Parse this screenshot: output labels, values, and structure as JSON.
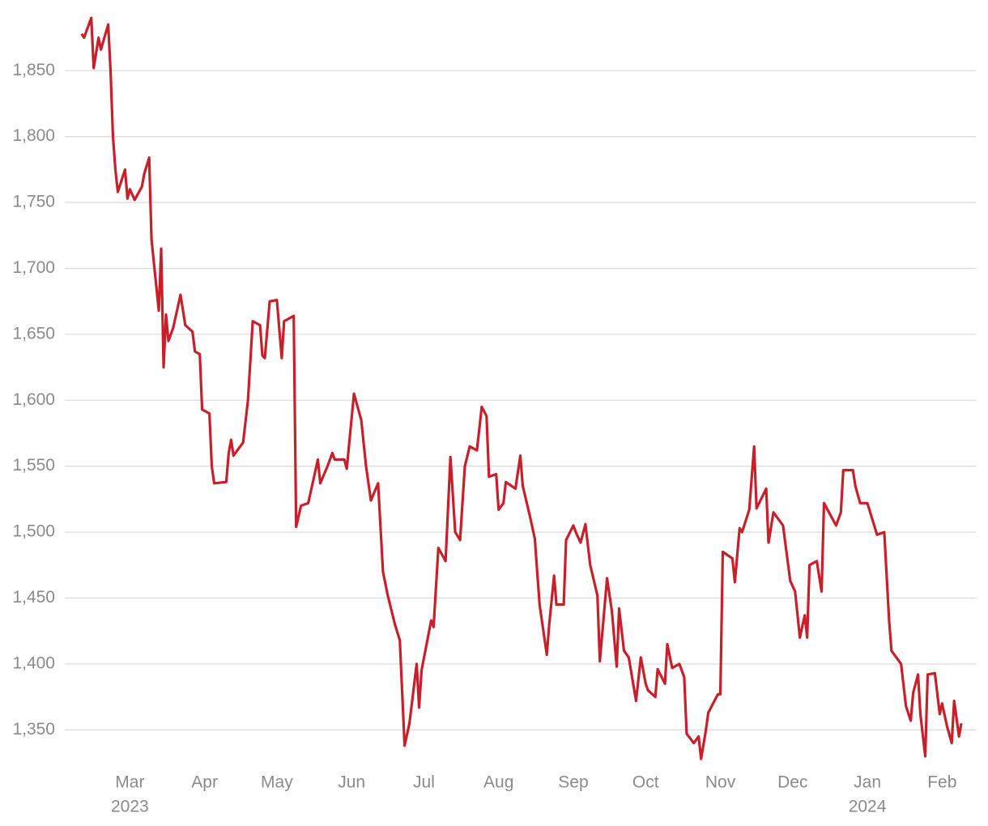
{
  "chart_data": {
    "type": "line",
    "x": [
      39,
      40,
      43,
      44,
      46,
      47,
      50,
      51,
      52,
      53,
      54,
      57,
      58,
      59,
      61,
      64,
      65,
      67,
      68,
      71,
      72,
      73,
      74,
      75,
      77,
      80,
      82,
      85,
      86,
      88,
      89,
      92,
      93,
      94,
      99,
      100,
      101,
      102,
      106,
      108,
      110,
      113,
      114,
      115,
      117,
      120,
      122,
      123,
      127,
      128,
      130,
      133,
      137,
      138,
      141,
      143,
      144,
      148,
      149,
      152,
      155,
      157,
      159,
      162,
      164,
      166,
      169,
      171,
      173,
      175,
      178,
      179,
      180,
      184,
      185,
      187,
      190,
      192,
      194,
      196,
      198,
      200,
      203,
      205,
      207,
      208,
      211,
      212,
      214,
      215,
      219,
      221,
      222,
      225,
      227,
      229,
      232,
      233,
      235,
      236,
      239,
      240,
      243,
      244,
      246,
      248,
      250,
      253,
      254,
      257,
      259,
      261,
      262,
      264,
      266,
      269,
      271,
      273,
      274,
      277,
      278,
      281,
      282,
      284,
      287,
      289,
      290,
      293,
      295,
      296,
      298,
      299,
      303,
      304,
      305,
      309,
      310,
      312,
      313,
      316,
      318,
      319,
      323,
      324,
      326,
      328,
      330,
      333,
      335,
      337,
      339,
      340,
      341,
      344,
      346,
      347,
      352,
      354,
      355,
      359,
      360,
      362,
      365,
      367,
      369,
      372,
      374,
      375,
      379,
      381,
      383,
      384,
      386,
      387,
      389,
      390,
      393,
      395,
      396,
      398,
      400,
      401,
      403,
      404
    ],
    "series": [
      {
        "color": "#c8202a",
        "values": [
          1878,
          1875,
          1890,
          1852,
          1875,
          1866,
          1885,
          1850,
          1800,
          1775,
          1758,
          1775,
          1753,
          1760,
          1752,
          1762,
          1772,
          1784,
          1722,
          1668,
          1715,
          1625,
          1665,
          1645,
          1655,
          1680,
          1657,
          1652,
          1637,
          1635,
          1593,
          1590,
          1550,
          1537,
          1538,
          1560,
          1570,
          1558,
          1568,
          1600,
          1660,
          1657,
          1634,
          1632,
          1675,
          1676,
          1632,
          1660,
          1664,
          1504,
          1520,
          1522,
          1555,
          1537,
          1550,
          1560,
          1555,
          1555,
          1548,
          1605,
          1585,
          1550,
          1524,
          1537,
          1470,
          1452,
          1430,
          1418,
          1338,
          1355,
          1400,
          1367,
          1395,
          1433,
          1428,
          1488,
          1478,
          1557,
          1500,
          1494,
          1550,
          1565,
          1562,
          1595,
          1588,
          1542,
          1544,
          1517,
          1522,
          1538,
          1533,
          1558,
          1535,
          1512,
          1495,
          1445,
          1407,
          1430,
          1467,
          1445,
          1445,
          1494,
          1505,
          1500,
          1492,
          1506,
          1475,
          1452,
          1402,
          1465,
          1440,
          1398,
          1442,
          1410,
          1405,
          1372,
          1405,
          1385,
          1380,
          1375,
          1396,
          1385,
          1415,
          1397,
          1400,
          1390,
          1347,
          1340,
          1345,
          1328,
          1350,
          1363,
          1377,
          1377,
          1485,
          1480,
          1462,
          1503,
          1500,
          1517,
          1565,
          1518,
          1533,
          1492,
          1515,
          1510,
          1505,
          1463,
          1455,
          1420,
          1437,
          1420,
          1475,
          1478,
          1455,
          1522,
          1505,
          1515,
          1547,
          1547,
          1535,
          1522,
          1522,
          1510,
          1498,
          1500,
          1433,
          1410,
          1400,
          1368,
          1357,
          1378,
          1392,
          1362,
          1330,
          1392,
          1393,
          1362,
          1370,
          1353,
          1340,
          1372,
          1345,
          1355
        ]
      }
    ],
    "xlim": [
      32,
      410
    ],
    "xticks": [
      {
        "value": 59,
        "label": "Mar"
      },
      {
        "value": 90,
        "label": "Apr"
      },
      {
        "value": 120,
        "label": "May"
      },
      {
        "value": 151,
        "label": "Jun"
      },
      {
        "value": 181,
        "label": "Jul"
      },
      {
        "value": 212,
        "label": "Aug"
      },
      {
        "value": 243,
        "label": "Sep"
      },
      {
        "value": 273,
        "label": "Oct"
      },
      {
        "value": 304,
        "label": "Nov"
      },
      {
        "value": 334,
        "label": "Dec"
      },
      {
        "value": 365,
        "label": "Jan"
      },
      {
        "value": 396,
        "label": "Feb"
      }
    ],
    "year_labels": [
      {
        "value": 59,
        "label": "2023"
      },
      {
        "value": 365,
        "label": "2024"
      }
    ],
    "ylim": [
      1325,
      1895
    ],
    "yticks": [
      {
        "value": 1350,
        "label": "1,350"
      },
      {
        "value": 1400,
        "label": "1,400"
      },
      {
        "value": 1450,
        "label": "1,450"
      },
      {
        "value": 1500,
        "label": "1,500"
      },
      {
        "value": 1550,
        "label": "1,550"
      },
      {
        "value": 1600,
        "label": "1,600"
      },
      {
        "value": 1650,
        "label": "1,650"
      },
      {
        "value": 1700,
        "label": "1,700"
      },
      {
        "value": 1750,
        "label": "1,750"
      },
      {
        "value": 1800,
        "label": "1,800"
      },
      {
        "value": 1850,
        "label": "1,850"
      }
    ],
    "grid": true
  }
}
